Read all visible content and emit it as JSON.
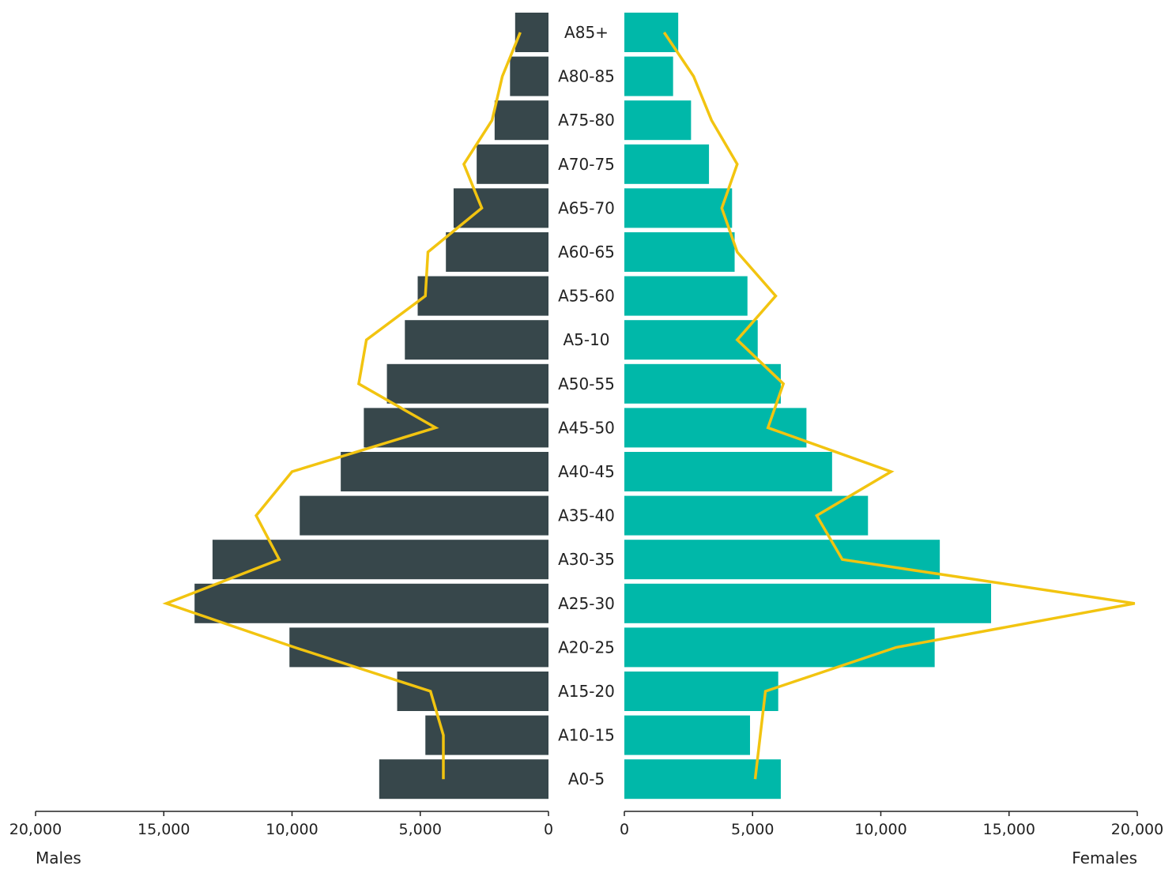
{
  "chart_data": {
    "type": "bar",
    "orientation": "population-pyramid",
    "categories": [
      "A85+",
      "A80-85",
      "A75-80",
      "A70-75",
      "A65-70",
      "A60-65",
      "A55-60",
      "A5-10",
      "A50-55",
      "A45-50",
      "A40-45",
      "A35-40",
      "A30-35",
      "A25-30",
      "A20-25",
      "A15-20",
      "A10-15",
      "A0-5"
    ],
    "series": [
      {
        "name": "Males",
        "color": "#37474b",
        "values": [
          1300,
          1500,
          2100,
          2800,
          3700,
          4000,
          5100,
          5600,
          6300,
          7200,
          8100,
          9700,
          13100,
          13800,
          10100,
          5900,
          4800,
          6600
        ]
      },
      {
        "name": "Females",
        "color": "#00b8a9",
        "values": [
          2100,
          1900,
          2600,
          3300,
          4200,
          4300,
          4800,
          5200,
          6100,
          7100,
          8100,
          9500,
          12300,
          14300,
          12100,
          6000,
          4900,
          6100
        ]
      }
    ],
    "overlay_lines": [
      {
        "side": "Males",
        "color": "#f2c410",
        "values": [
          1100,
          1800,
          2200,
          3300,
          2600,
          4700,
          4800,
          7100,
          7400,
          4400,
          10000,
          11400,
          10500,
          14900,
          9900,
          4600,
          4100,
          4100
        ]
      },
      {
        "side": "Females",
        "color": "#f2c410",
        "values": [
          1550,
          2700,
          3400,
          4400,
          3800,
          4400,
          5900,
          4400,
          6200,
          5600,
          10400,
          7500,
          8500,
          19900,
          10600,
          5500,
          5300,
          5100
        ]
      }
    ],
    "xlim": [
      0,
      20000
    ],
    "x_ticks": [
      {
        "value": 20000,
        "label": "20,000"
      },
      {
        "value": 15000,
        "label": "15,000"
      },
      {
        "value": 10000,
        "label": "10,000"
      },
      {
        "value": 5000,
        "label": "5,000"
      },
      {
        "value": 0,
        "label": "0"
      }
    ],
    "left_label": "Males",
    "right_label": "Females",
    "legend": "none",
    "grid": false
  }
}
